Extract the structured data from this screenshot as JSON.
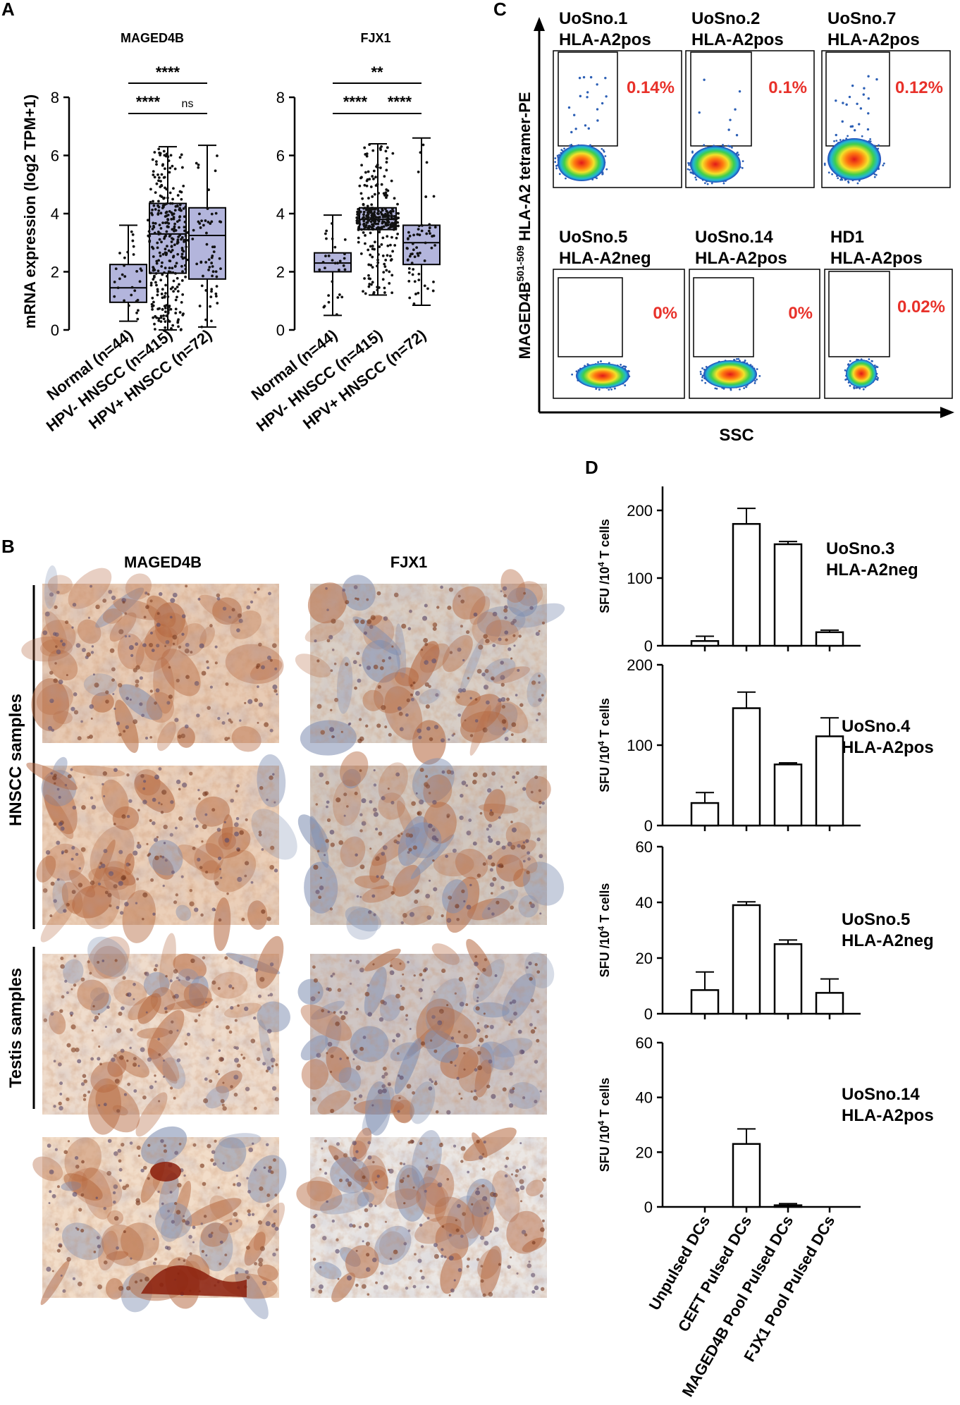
{
  "panel_letters": {
    "a": "A",
    "b": "B",
    "c": "C",
    "d": "D"
  },
  "palette": {
    "box_fill": "#b3b5dc",
    "ihc_dab": "#b4653c",
    "ihc_hema": "#7c8cb0",
    "ihc_bg": "#efe2d6",
    "percent_red": "#e8312a",
    "flow_blue": "#2c5fb5"
  },
  "panel_b": {
    "col_labels": [
      "MAGED4B",
      "FJX1"
    ],
    "row_group_labels": [
      "HNSCC samples",
      "Testis samples"
    ]
  },
  "panel_c": {
    "y_axis_label_pre": "MAGED4B",
    "y_axis_label_sup": "501-509",
    "y_axis_label_post": " HLA-A2 tetramer-PE",
    "x_axis_label": "SSC",
    "plots": [
      {
        "line1": "UoSno.1",
        "line2": "HLA-A2pos",
        "percent": "0.14%"
      },
      {
        "line1": "UoSno.2",
        "line2": "HLA-A2pos",
        "percent": "0.1%"
      },
      {
        "line1": "UoSno.7",
        "line2": "HLA-A2pos",
        "percent": "0.12%"
      },
      {
        "line1": "UoSno.5",
        "line2": "HLA-A2neg",
        "percent": "0%"
      },
      {
        "line1": "UoSno.14",
        "line2": "HLA-A2pos",
        "percent": "0%"
      },
      {
        "line1": "HD1",
        "line2": "HLA-A2pos",
        "percent": "0.02%"
      }
    ]
  },
  "chart_data": [
    {
      "panel": "A",
      "type": "box",
      "title": "MAGED4B",
      "ylabel": "mRNA expression (log2 TPM+1)",
      "ylim": [
        0,
        8
      ],
      "yticks": [
        "0",
        "2",
        "4",
        "6",
        "8"
      ],
      "categories": [
        "Normal (n=44)",
        "HPV- HNSCC (n=415)",
        "HPV+ HNSCC (n=72)"
      ],
      "boxes": [
        {
          "min": 0.3,
          "q1": 0.95,
          "median": 1.45,
          "q3": 2.25,
          "max": 3.6
        },
        {
          "min": 0.0,
          "q1": 1.95,
          "median": 3.3,
          "q3": 4.35,
          "max": 6.3
        },
        {
          "min": 0.1,
          "q1": 1.75,
          "median": 3.25,
          "q3": 4.2,
          "max": 6.35
        }
      ],
      "significance": [
        {
          "from": 0,
          "to": 2,
          "label": "****"
        },
        {
          "from": 0,
          "to": 1,
          "label": "****"
        },
        {
          "from": 1,
          "to": 2,
          "label": "ns"
        }
      ]
    },
    {
      "panel": "A",
      "type": "box",
      "title": "FJX1",
      "ylim": [
        0,
        8
      ],
      "yticks": [
        "0",
        "2",
        "4",
        "6",
        "8"
      ],
      "categories": [
        "Normal (n=44)",
        "HPV- HNSCC (n=415)",
        "HPV+ HNSCC (n=72)"
      ],
      "boxes": [
        {
          "min": 0.5,
          "q1": 2.0,
          "median": 2.3,
          "q3": 2.65,
          "max": 3.95
        },
        {
          "min": 1.2,
          "q1": 3.45,
          "median": 3.8,
          "q3": 4.2,
          "max": 6.4
        },
        {
          "min": 0.85,
          "q1": 2.25,
          "median": 3.0,
          "q3": 3.6,
          "max": 6.6
        }
      ],
      "significance": [
        {
          "from": 0,
          "to": 2,
          "label": "**"
        },
        {
          "from": 0,
          "to": 1,
          "label": "****"
        },
        {
          "from": 1,
          "to": 2,
          "label": "****"
        }
      ]
    },
    {
      "panel": "D",
      "type": "bar",
      "ylabel_pre": "SFU /10",
      "ylabel_sup": "4",
      "ylabel_post": " T cells",
      "label_line1": "UoSno.3",
      "label_line2": "HLA-A2neg",
      "ylim": [
        0,
        250
      ],
      "yticks": [
        "0",
        "100",
        "200"
      ],
      "categories": [
        "Unpulsed DCs",
        "CEFT Pulsed DCs",
        "MAGED4B Pool Pulsed DCs",
        "FJX1 Pool Pulsed DCs"
      ],
      "values": [
        7,
        180,
        150,
        20
      ],
      "errors": [
        7,
        23,
        4,
        3
      ]
    },
    {
      "panel": "D",
      "type": "bar",
      "ylabel_pre": "SFU /10",
      "ylabel_sup": "4",
      "ylabel_post": " T cells",
      "label_line1": "UoSno.4",
      "label_line2": "HLA-A2pos",
      "ylim": [
        0,
        200
      ],
      "yticks": [
        "0",
        "100",
        "200"
      ],
      "categories": [
        "Unpulsed DCs",
        "CEFT Pulsed DCs",
        "MAGED4B Pool Pulsed DCs",
        "FJX1 Pool Pulsed DCs"
      ],
      "values": [
        28,
        146,
        76,
        111
      ],
      "errors": [
        13,
        20,
        2,
        23
      ]
    },
    {
      "panel": "D",
      "type": "bar",
      "ylabel_pre": "SFU /10",
      "ylabel_sup": "4",
      "ylabel_post": " T cells",
      "label_line1": "UoSno.5",
      "label_line2": "HLA-A2neg",
      "ylim": [
        0,
        60
      ],
      "yticks": [
        "0",
        "20",
        "40",
        "60"
      ],
      "categories": [
        "Unpulsed DCs",
        "CEFT Pulsed DCs",
        "MAGED4B Pool Pulsed DCs",
        "FJX1 Pool Pulsed DCs"
      ],
      "values": [
        8.5,
        39,
        25,
        7.5
      ],
      "errors": [
        6.5,
        1.2,
        1.5,
        5
      ]
    },
    {
      "panel": "D",
      "type": "bar",
      "ylabel_pre": "SFU /10",
      "ylabel_sup": "4",
      "ylabel_post": " T cells",
      "label_line1": "UoSno.14",
      "label_line2": "HLA-A2pos",
      "ylim": [
        0,
        60
      ],
      "yticks": [
        "0",
        "20",
        "40",
        "60"
      ],
      "categories": [
        "Unpulsed DCs",
        "CEFT Pulsed DCs",
        "MAGED4B Pool Pulsed DCs",
        "FJX1 Pool Pulsed DCs"
      ],
      "values": [
        0,
        23,
        0.6,
        0
      ],
      "errors": [
        0,
        5.5,
        0.6,
        0
      ]
    }
  ]
}
